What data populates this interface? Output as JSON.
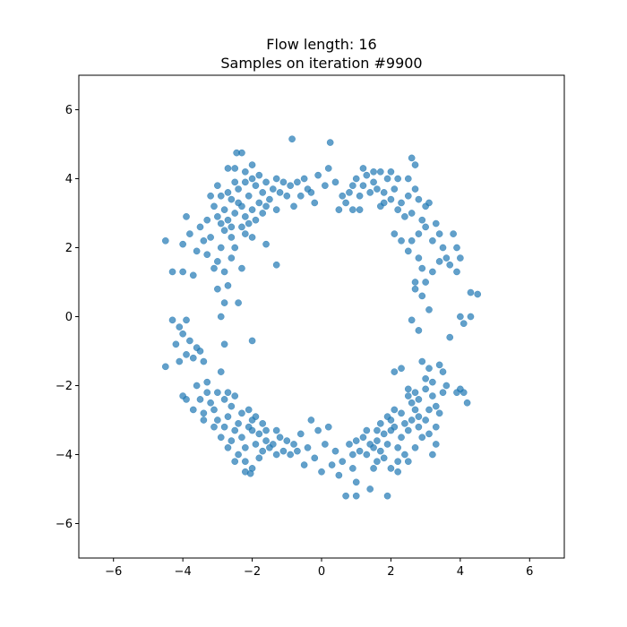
{
  "chart_data": {
    "type": "scatter",
    "title": "Flow length: 16",
    "subtitle": "Samples on iteration #9900",
    "xlabel": "",
    "ylabel": "",
    "xlim": [
      -7,
      7
    ],
    "ylim": [
      -7,
      7
    ],
    "xticks": [
      -6,
      -4,
      -2,
      0,
      2,
      4,
      6
    ],
    "yticks": [
      -6,
      -4,
      -2,
      0,
      2,
      4,
      6
    ],
    "xtick_labels": [
      "−6",
      "−4",
      "−2",
      "0",
      "2",
      "4",
      "6"
    ],
    "ytick_labels": [
      "−6",
      "−4",
      "−2",
      "0",
      "2",
      "4",
      "6"
    ],
    "grid": false,
    "marker_color": "#1f77b4",
    "marker_alpha": 0.7,
    "series": [
      {
        "points": [
          [
            -2.3,
            3.2
          ],
          [
            -2.1,
            3.5
          ],
          [
            -1.9,
            3.8
          ],
          [
            -2.5,
            3.0
          ],
          [
            -2.2,
            2.9
          ],
          [
            -1.8,
            3.3
          ],
          [
            -2.6,
            3.4
          ],
          [
            -2.0,
            4.0
          ],
          [
            -1.7,
            3.6
          ],
          [
            -2.4,
            3.7
          ],
          [
            -2.8,
            3.1
          ],
          [
            -2.7,
            2.8
          ],
          [
            -1.6,
            3.9
          ],
          [
            -2.2,
            4.2
          ],
          [
            -1.5,
            3.4
          ],
          [
            -2.9,
            3.5
          ],
          [
            -2.3,
            2.6
          ],
          [
            -1.9,
            2.8
          ],
          [
            -2.6,
            2.6
          ],
          [
            -2.0,
            3.1
          ],
          [
            -1.8,
            4.1
          ],
          [
            -2.5,
            3.9
          ],
          [
            -1.4,
            3.7
          ],
          [
            -3.0,
            2.9
          ],
          [
            -2.1,
            2.7
          ],
          [
            -1.7,
            3.0
          ],
          [
            -2.4,
            3.3
          ],
          [
            -2.7,
            3.6
          ],
          [
            -1.3,
            4.0
          ],
          [
            -2.2,
            3.9
          ],
          [
            -3.1,
            3.2
          ],
          [
            -2.8,
            2.5
          ],
          [
            -1.6,
            3.2
          ],
          [
            -2.0,
            4.4
          ],
          [
            -2.5,
            4.3
          ],
          [
            -1.2,
            3.6
          ],
          [
            -1.1,
            3.9
          ],
          [
            -1.0,
            3.5
          ],
          [
            -0.9,
            3.8
          ],
          [
            -0.8,
            3.2
          ],
          [
            -1.3,
            3.1
          ],
          [
            -2.9,
            2.7
          ],
          [
            -3.2,
            3.5
          ],
          [
            -3.3,
            2.8
          ],
          [
            -2.3,
            4.75
          ],
          [
            -2.45,
            4.75
          ],
          [
            -2.7,
            4.3
          ],
          [
            -3.0,
            3.8
          ],
          [
            -2.6,
            2.3
          ],
          [
            -2.2,
            2.4
          ],
          [
            -3.4,
            2.2
          ],
          [
            -3.5,
            2.6
          ],
          [
            -3.8,
            2.4
          ],
          [
            -3.9,
            2.9
          ],
          [
            -4.0,
            2.1
          ],
          [
            -3.6,
            1.9
          ],
          [
            -3.1,
            1.4
          ],
          [
            -3.0,
            1.6
          ],
          [
            -2.8,
            1.3
          ],
          [
            -2.7,
            0.9
          ],
          [
            -2.6,
            1.7
          ],
          [
            -2.5,
            2.0
          ],
          [
            -2.3,
            1.4
          ],
          [
            -2.0,
            2.3
          ],
          [
            -1.6,
            2.1
          ],
          [
            -1.3,
            1.5
          ],
          [
            -3.2,
            2.3
          ],
          [
            -3.3,
            1.8
          ],
          [
            -2.9,
            2.0
          ],
          [
            -4.0,
            1.3
          ],
          [
            -4.3,
            1.3
          ],
          [
            -3.7,
            1.2
          ],
          [
            -4.5,
            2.2
          ],
          [
            -3.0,
            0.8
          ],
          [
            -2.4,
            0.4
          ],
          [
            -2.8,
            0.4
          ],
          [
            -2.9,
            0.0
          ],
          [
            -2.8,
            -0.8
          ],
          [
            -2.0,
            -0.7
          ],
          [
            -3.6,
            -0.9
          ],
          [
            -3.8,
            -0.7
          ],
          [
            -4.1,
            -0.3
          ],
          [
            -4.3,
            -0.1
          ],
          [
            -3.9,
            -0.1
          ],
          [
            -4.0,
            -0.5
          ],
          [
            -4.2,
            -0.8
          ],
          [
            -3.5,
            -1.0
          ],
          [
            -3.7,
            -1.2
          ],
          [
            -3.4,
            -1.3
          ],
          [
            -3.9,
            -1.1
          ],
          [
            -4.1,
            -1.3
          ],
          [
            -4.5,
            -1.45
          ],
          [
            -0.85,
            5.15
          ],
          [
            0.25,
            5.05
          ],
          [
            -0.5,
            4.0
          ],
          [
            -0.3,
            3.6
          ],
          [
            -0.1,
            4.1
          ],
          [
            0.1,
            3.8
          ],
          [
            0.2,
            4.3
          ],
          [
            -0.6,
            3.5
          ],
          [
            -0.2,
            3.3
          ],
          [
            0.4,
            3.9
          ],
          [
            0.6,
            3.5
          ],
          [
            -0.4,
            3.7
          ],
          [
            -0.7,
            3.9
          ],
          [
            1.2,
            3.8
          ],
          [
            1.5,
            3.9
          ],
          [
            1.8,
            3.6
          ],
          [
            2.1,
            3.7
          ],
          [
            2.3,
            3.3
          ],
          [
            2.5,
            3.5
          ],
          [
            2.2,
            3.1
          ],
          [
            1.9,
            4.0
          ],
          [
            1.6,
            3.7
          ],
          [
            1.3,
            4.1
          ],
          [
            2.6,
            3.0
          ],
          [
            2.8,
            3.4
          ],
          [
            2.4,
            2.9
          ],
          [
            2.0,
            3.4
          ],
          [
            1.7,
            3.2
          ],
          [
            1.1,
            3.5
          ],
          [
            0.9,
            3.8
          ],
          [
            2.7,
            3.7
          ],
          [
            3.0,
            3.2
          ],
          [
            2.9,
            2.8
          ],
          [
            1.4,
            3.6
          ],
          [
            1.0,
            4.0
          ],
          [
            0.8,
            3.6
          ],
          [
            2.2,
            4.0
          ],
          [
            2.5,
            4.0
          ],
          [
            2.7,
            4.4
          ],
          [
            2.6,
            4.6
          ],
          [
            2.0,
            4.2
          ],
          [
            1.5,
            4.2
          ],
          [
            1.2,
            4.3
          ],
          [
            3.1,
            3.3
          ],
          [
            3.0,
            2.6
          ],
          [
            2.8,
            2.4
          ],
          [
            3.2,
            2.2
          ],
          [
            3.3,
            2.7
          ],
          [
            3.4,
            2.4
          ],
          [
            3.5,
            2.0
          ],
          [
            3.6,
            1.7
          ],
          [
            3.8,
            2.4
          ],
          [
            3.9,
            2.0
          ],
          [
            3.7,
            1.5
          ],
          [
            3.4,
            1.6
          ],
          [
            3.2,
            1.3
          ],
          [
            3.0,
            1.0
          ],
          [
            2.9,
            1.4
          ],
          [
            2.8,
            1.7
          ],
          [
            2.6,
            2.2
          ],
          [
            2.5,
            1.9
          ],
          [
            2.3,
            2.2
          ],
          [
            2.1,
            2.4
          ],
          [
            3.9,
            1.3
          ],
          [
            4.0,
            1.7
          ],
          [
            4.3,
            0.7
          ],
          [
            4.5,
            0.65
          ],
          [
            2.9,
            0.6
          ],
          [
            2.7,
            0.8
          ],
          [
            3.1,
            0.2
          ],
          [
            4.0,
            0.0
          ],
          [
            4.3,
            0.0
          ],
          [
            4.1,
            -0.2
          ],
          [
            3.7,
            -0.6
          ],
          [
            2.6,
            -0.1
          ],
          [
            2.8,
            -0.4
          ],
          [
            2.7,
            1.0
          ],
          [
            1.8,
            3.3
          ],
          [
            1.1,
            3.1
          ],
          [
            0.7,
            3.3
          ],
          [
            0.5,
            3.1
          ],
          [
            0.9,
            3.1
          ],
          [
            1.7,
            4.2
          ],
          [
            -2.3,
            -3.5
          ],
          [
            -2.1,
            -3.2
          ],
          [
            -1.9,
            -3.7
          ],
          [
            -2.5,
            -3.3
          ],
          [
            -2.2,
            -3.8
          ],
          [
            -1.8,
            -3.4
          ],
          [
            -2.6,
            -3.6
          ],
          [
            -2.0,
            -3.0
          ],
          [
            -1.7,
            -3.9
          ],
          [
            -2.4,
            -4.0
          ],
          [
            -2.8,
            -3.2
          ],
          [
            -2.7,
            -2.9
          ],
          [
            -1.6,
            -3.6
          ],
          [
            -2.2,
            -4.2
          ],
          [
            -1.5,
            -3.8
          ],
          [
            -2.9,
            -3.5
          ],
          [
            -2.3,
            -2.8
          ],
          [
            -1.9,
            -2.9
          ],
          [
            -2.6,
            -2.6
          ],
          [
            -2.0,
            -3.3
          ],
          [
            -1.8,
            -4.1
          ],
          [
            -2.5,
            -4.2
          ],
          [
            -1.4,
            -3.7
          ],
          [
            -3.0,
            -3.0
          ],
          [
            -2.1,
            -2.7
          ],
          [
            -1.7,
            -3.1
          ],
          [
            -2.4,
            -3.1
          ],
          [
            -2.7,
            -3.8
          ],
          [
            -1.3,
            -4.0
          ],
          [
            -2.2,
            -4.5
          ],
          [
            -3.1,
            -2.7
          ],
          [
            -2.8,
            -2.4
          ],
          [
            -1.6,
            -3.3
          ],
          [
            -2.0,
            -4.4
          ],
          [
            -1.2,
            -3.5
          ],
          [
            -1.1,
            -3.9
          ],
          [
            -1.0,
            -3.6
          ],
          [
            -0.9,
            -4.0
          ],
          [
            -0.8,
            -3.7
          ],
          [
            -1.3,
            -3.3
          ],
          [
            -3.2,
            -2.5
          ],
          [
            -3.3,
            -2.2
          ],
          [
            -3.5,
            -2.4
          ],
          [
            -3.4,
            -2.8
          ],
          [
            -3.6,
            -2.0
          ],
          [
            -3.9,
            -2.4
          ],
          [
            -4.0,
            -2.3
          ],
          [
            -3.3,
            -1.9
          ],
          [
            -3.0,
            -2.2
          ],
          [
            -2.7,
            -2.2
          ],
          [
            -2.5,
            -2.3
          ],
          [
            -3.1,
            -3.2
          ],
          [
            -3.4,
            -3.0
          ],
          [
            -3.7,
            -2.7
          ],
          [
            -2.9,
            -1.6
          ],
          [
            -0.6,
            -3.4
          ],
          [
            -0.4,
            -3.8
          ],
          [
            -0.2,
            -4.1
          ],
          [
            0.1,
            -3.7
          ],
          [
            0.3,
            -4.3
          ],
          [
            -0.5,
            -4.3
          ],
          [
            0.2,
            -3.2
          ],
          [
            0.4,
            -3.9
          ],
          [
            0.6,
            -4.2
          ],
          [
            -0.1,
            -3.3
          ],
          [
            -0.7,
            -3.9
          ],
          [
            0.0,
            -4.5
          ],
          [
            -0.3,
            -3.0
          ],
          [
            -2.05,
            -4.55
          ],
          [
            2.3,
            -3.5
          ],
          [
            2.1,
            -3.2
          ],
          [
            1.9,
            -3.7
          ],
          [
            2.5,
            -3.3
          ],
          [
            2.2,
            -3.8
          ],
          [
            1.8,
            -3.4
          ],
          [
            2.6,
            -3.0
          ],
          [
            2.0,
            -3.0
          ],
          [
            1.7,
            -3.9
          ],
          [
            2.4,
            -4.0
          ],
          [
            2.8,
            -3.2
          ],
          [
            2.7,
            -2.7
          ],
          [
            1.6,
            -3.6
          ],
          [
            2.2,
            -4.2
          ],
          [
            1.5,
            -3.8
          ],
          [
            2.9,
            -3.5
          ],
          [
            2.3,
            -2.8
          ],
          [
            1.9,
            -2.9
          ],
          [
            2.6,
            -2.5
          ],
          [
            2.0,
            -3.3
          ],
          [
            1.8,
            -4.1
          ],
          [
            2.5,
            -4.2
          ],
          [
            1.4,
            -3.7
          ],
          [
            3.0,
            -3.0
          ],
          [
            2.1,
            -2.7
          ],
          [
            1.7,
            -3.1
          ],
          [
            2.4,
            -3.1
          ],
          [
            2.7,
            -3.8
          ],
          [
            1.3,
            -4.0
          ],
          [
            2.2,
            -4.5
          ],
          [
            3.1,
            -2.7
          ],
          [
            2.8,
            -2.4
          ],
          [
            1.6,
            -3.3
          ],
          [
            2.0,
            -4.4
          ],
          [
            1.2,
            -3.5
          ],
          [
            1.1,
            -3.9
          ],
          [
            1.0,
            -3.6
          ],
          [
            0.9,
            -4.0
          ],
          [
            0.8,
            -3.7
          ],
          [
            1.3,
            -3.3
          ],
          [
            3.2,
            -2.3
          ],
          [
            3.3,
            -2.6
          ],
          [
            3.5,
            -2.2
          ],
          [
            3.4,
            -2.8
          ],
          [
            3.6,
            -2.0
          ],
          [
            3.9,
            -2.2
          ],
          [
            4.0,
            -2.1
          ],
          [
            3.2,
            -1.9
          ],
          [
            3.0,
            -2.1
          ],
          [
            2.7,
            -2.2
          ],
          [
            2.5,
            -2.3
          ],
          [
            3.1,
            -3.4
          ],
          [
            3.3,
            -3.2
          ],
          [
            3.1,
            -1.5
          ],
          [
            2.1,
            -1.6
          ],
          [
            2.3,
            -1.5
          ],
          [
            2.9,
            -1.3
          ],
          [
            3.0,
            -1.8
          ],
          [
            3.5,
            -1.6
          ],
          [
            3.4,
            -1.4
          ],
          [
            4.2,
            -2.5
          ],
          [
            4.1,
            -2.2
          ],
          [
            3.3,
            -3.7
          ],
          [
            3.2,
            -4.0
          ],
          [
            1.0,
            -4.8
          ],
          [
            1.4,
            -5.0
          ],
          [
            1.5,
            -4.4
          ],
          [
            0.7,
            -5.2
          ],
          [
            1.0,
            -5.2
          ],
          [
            1.9,
            -5.2
          ],
          [
            0.5,
            -4.6
          ],
          [
            0.9,
            -4.4
          ],
          [
            1.6,
            -4.2
          ],
          [
            2.5,
            -2.1
          ],
          [
            2.8,
            -2.9
          ]
        ]
      }
    ]
  }
}
